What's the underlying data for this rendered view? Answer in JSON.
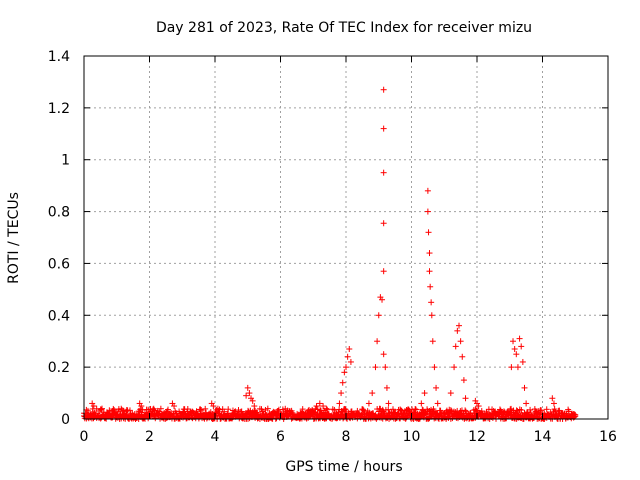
{
  "chart_data": {
    "type": "scatter",
    "title": "Day 281 of 2023, Rate Of TEC Index for receiver mizu",
    "xlabel": "GPS time / hours",
    "ylabel": "ROTI / TECUs",
    "xlim": [
      0,
      16
    ],
    "ylim": [
      0,
      1.4
    ],
    "grid": true,
    "marker": "+",
    "color": "#ff0000",
    "x_ticks": [
      0,
      2,
      4,
      6,
      8,
      10,
      12,
      14,
      16
    ],
    "x_tick_labels": [
      "0",
      "2",
      "4",
      "6",
      "8",
      "10",
      "12",
      "14",
      "16"
    ],
    "y_ticks": [
      0,
      0.2,
      0.4,
      0.6,
      0.8,
      1.0,
      1.2,
      1.4
    ],
    "y_tick_labels": [
      "0",
      "0.2",
      "0.4",
      "0.6",
      "0.8",
      "1",
      "1.2",
      "1.4"
    ],
    "baseline": {
      "x_start": 0.0,
      "x_end": 15.0,
      "typical_range": [
        0.0,
        0.04
      ]
    },
    "series": [
      {
        "name": "ROTI",
        "x": [
          0.25,
          0.3,
          0.55,
          1.7,
          1.75,
          2.7,
          2.75,
          3.9,
          3.95,
          4.95,
          5.0,
          5.05,
          5.1,
          5.15,
          5.2,
          7.1,
          7.2,
          7.3,
          7.4,
          7.8,
          7.85,
          7.9,
          7.95,
          8.0,
          8.05,
          8.1,
          8.15,
          8.7,
          8.8,
          8.9,
          8.95,
          9.0,
          9.05,
          9.1,
          9.15,
          9.15,
          9.15,
          9.15,
          9.15,
          9.15,
          9.2,
          9.25,
          9.3,
          10.3,
          10.4,
          10.5,
          10.5,
          10.52,
          10.55,
          10.55,
          10.57,
          10.6,
          10.62,
          10.65,
          10.7,
          10.75,
          10.8,
          11.2,
          11.3,
          11.35,
          11.4,
          11.45,
          11.5,
          11.55,
          11.6,
          11.65,
          11.95,
          12.0,
          12.05,
          13.05,
          13.1,
          13.15,
          13.2,
          13.25,
          13.3,
          13.35,
          13.4,
          13.45,
          13.5,
          14.3,
          14.35
        ],
        "y": [
          0.06,
          0.05,
          0.04,
          0.06,
          0.05,
          0.06,
          0.05,
          0.06,
          0.05,
          0.09,
          0.12,
          0.1,
          0.08,
          0.07,
          0.05,
          0.05,
          0.06,
          0.05,
          0.04,
          0.06,
          0.1,
          0.14,
          0.18,
          0.2,
          0.24,
          0.27,
          0.22,
          0.06,
          0.1,
          0.2,
          0.3,
          0.4,
          0.47,
          0.46,
          0.57,
          0.755,
          0.95,
          1.12,
          1.27,
          0.25,
          0.2,
          0.12,
          0.06,
          0.06,
          0.1,
          0.88,
          0.8,
          0.72,
          0.64,
          0.57,
          0.51,
          0.45,
          0.4,
          0.3,
          0.2,
          0.12,
          0.06,
          0.1,
          0.2,
          0.28,
          0.34,
          0.36,
          0.3,
          0.24,
          0.15,
          0.08,
          0.07,
          0.06,
          0.05,
          0.2,
          0.3,
          0.27,
          0.25,
          0.2,
          0.31,
          0.28,
          0.22,
          0.12,
          0.06,
          0.08,
          0.06
        ]
      }
    ]
  }
}
